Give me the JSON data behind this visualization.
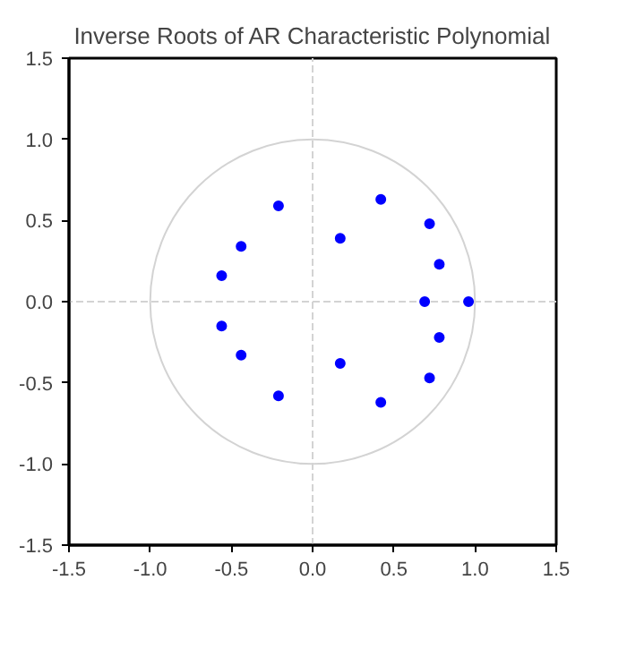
{
  "chart_data": {
    "type": "scatter",
    "title": "Inverse Roots of AR Characteristic Polynomial",
    "xlim": [
      -1.5,
      1.5
    ],
    "ylim": [
      -1.5,
      1.5
    ],
    "xticks": [
      -1.5,
      {
        "value": -1,
        "label": "-1.0"
      },
      {
        "value": -0.5,
        "label": "-0.5"
      },
      {
        "value": 0,
        "label": "0.0"
      },
      {
        "value": 0.5,
        "label": "0.5"
      },
      {
        "value": 1,
        "label": "1.0"
      },
      {
        "value": 1.5,
        "label": "1.5"
      }
    ],
    "yticks": [
      -1.5,
      {
        "value": -1,
        "label": "-1.0"
      },
      {
        "value": -0.5,
        "label": "-0.5"
      },
      {
        "value": 0,
        "label": "0.0"
      },
      {
        "value": 0.5,
        "label": "0.5"
      },
      {
        "value": 1,
        "label": "1.0"
      },
      {
        "value": 1.5,
        "label": "1.5"
      }
    ],
    "grid": false,
    "marker": "circle",
    "ref_lines": [
      {
        "axis": "x",
        "value": 0,
        "color": "#d3d3d3",
        "line_style": "dashed"
      },
      {
        "axis": "y",
        "value": 0,
        "color": "#d3d3d3",
        "line_style": "dashed"
      }
    ],
    "series": [
      {
        "color": "#0000ff",
        "x": [
          0.42,
          0.72,
          0.78,
          0.69,
          0.96,
          0.78,
          0.72,
          0.42,
          0.17,
          0.17,
          -0.21,
          -0.44,
          -0.56,
          -0.56,
          -0.44,
          -0.21
        ],
        "values": [
          0.63,
          0.48,
          0.23,
          0,
          0,
          -0.22,
          -0.47,
          -0.62,
          0.39,
          -0.38,
          0.59,
          0.34,
          0.16,
          -0.15,
          -0.33,
          -0.58
        ]
      }
    ]
  }
}
